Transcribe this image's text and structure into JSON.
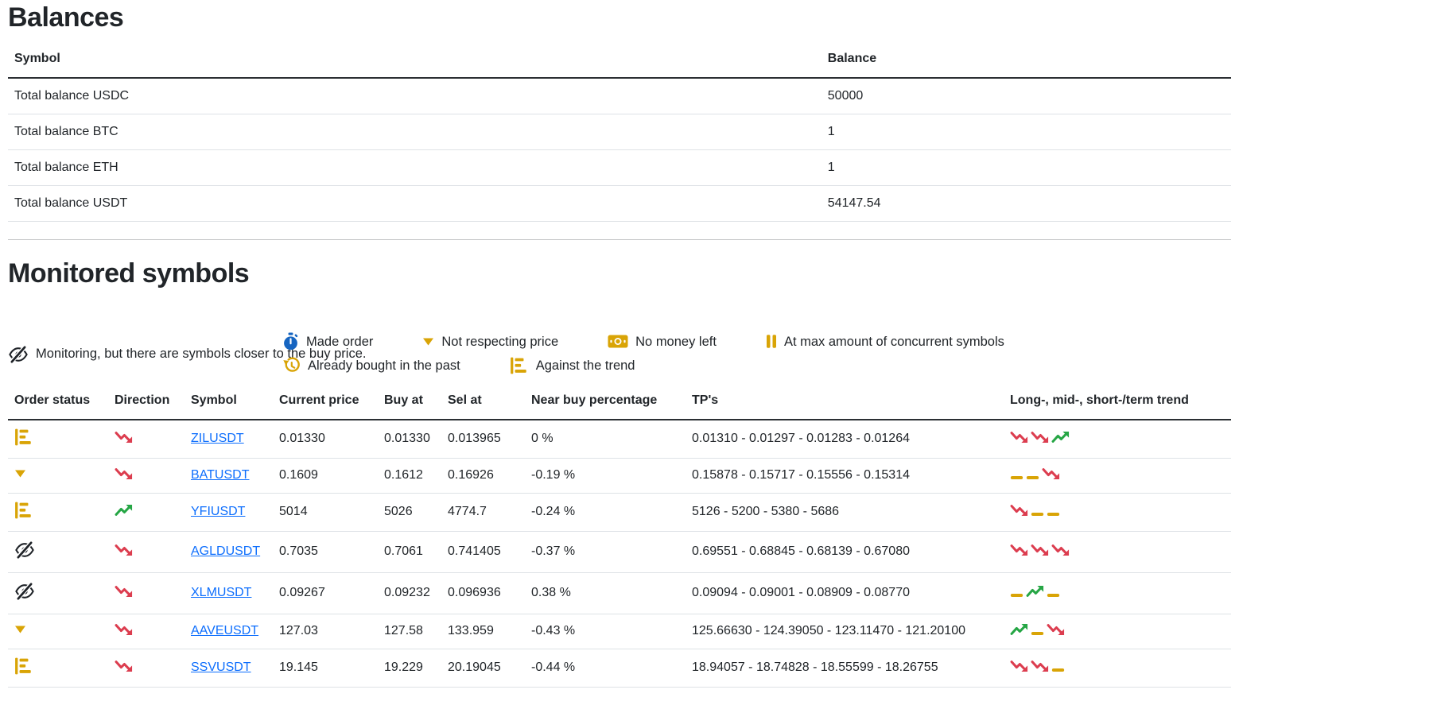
{
  "colors": {
    "gold": "#d9a406",
    "blue": "#1665c1",
    "red": "#dc3d4f",
    "green": "#26a645",
    "dark": "#1f2328",
    "link": "#0d6efd"
  },
  "balances": {
    "title": "Balances",
    "headers": [
      "Symbol",
      "Balance"
    ],
    "rows": [
      {
        "symbol": "Total balance USDC",
        "balance": "50000"
      },
      {
        "symbol": "Total balance BTC",
        "balance": "1"
      },
      {
        "symbol": "Total balance ETH",
        "balance": "1"
      },
      {
        "symbol": "Total balance USDT",
        "balance": "54147.54"
      }
    ]
  },
  "monitored": {
    "title": "Monitored symbols",
    "legend": [
      {
        "icon": "eye-slash",
        "label": "Monitoring, but there are symbols closer to the buy price."
      },
      {
        "icon": "stopwatch",
        "label": "Made order"
      },
      {
        "icon": "triangle-down",
        "label": "Not respecting price"
      },
      {
        "icon": "money-bill",
        "label": "No money left"
      },
      {
        "icon": "pause",
        "label": "At max amount of concurrent symbols"
      },
      {
        "icon": "history",
        "label": "Already bought in the past"
      },
      {
        "icon": "chart-levels",
        "label": "Against the trend"
      }
    ],
    "headers": [
      "Order status",
      "Direction",
      "Symbol",
      "Current price",
      "Buy at",
      "Sel at",
      "Near buy percentage",
      "TP's",
      "Long-, mid-, short-/term trend"
    ],
    "rows": [
      {
        "status": "chart-levels",
        "direction": "down",
        "symbol": "ZILUSDT",
        "current_price": "0.01330",
        "buy_at": "0.01330",
        "sell_at": "0.013965",
        "near_buy": "0 %",
        "tps": "0.01310 - 0.01297 - 0.01283 - 0.01264",
        "trend": [
          "down",
          "down",
          "up"
        ]
      },
      {
        "status": "triangle-down",
        "direction": "down",
        "symbol": "BATUSDT",
        "current_price": "0.1609",
        "buy_at": "0.1612",
        "sell_at": "0.16926",
        "near_buy": "-0.19 %",
        "tps": "0.15878 - 0.15717 - 0.15556 - 0.15314",
        "trend": [
          "flat",
          "flat",
          "down"
        ]
      },
      {
        "status": "chart-levels",
        "direction": "up",
        "symbol": "YFIUSDT",
        "current_price": "5014",
        "buy_at": "5026",
        "sell_at": "4774.7",
        "near_buy": "-0.24 %",
        "tps": "5126 - 5200 - 5380 - 5686",
        "trend": [
          "down",
          "flat",
          "flat"
        ]
      },
      {
        "status": "eye-slash",
        "direction": "down",
        "symbol": "AGLDUSDT",
        "current_price": "0.7035",
        "buy_at": "0.7061",
        "sell_at": "0.741405",
        "near_buy": "-0.37 %",
        "tps": "0.69551 - 0.68845 - 0.68139 - 0.67080",
        "trend": [
          "down",
          "down",
          "down"
        ]
      },
      {
        "status": "eye-slash",
        "direction": "down",
        "symbol": "XLMUSDT",
        "current_price": "0.09267",
        "buy_at": "0.09232",
        "sell_at": "0.096936",
        "near_buy": "0.38 %",
        "tps": "0.09094 - 0.09001 - 0.08909 - 0.08770",
        "trend": [
          "flat",
          "up",
          "flat"
        ]
      },
      {
        "status": "triangle-down",
        "direction": "down",
        "symbol": "AAVEUSDT",
        "current_price": "127.03",
        "buy_at": "127.58",
        "sell_at": "133.959",
        "near_buy": "-0.43 %",
        "tps": "125.66630 - 124.39050 - 123.11470 - 121.20100",
        "trend": [
          "up",
          "flat",
          "down"
        ]
      },
      {
        "status": "chart-levels",
        "direction": "down",
        "symbol": "SSVUSDT",
        "current_price": "19.145",
        "buy_at": "19.229",
        "sell_at": "20.19045",
        "near_buy": "-0.44 %",
        "tps": "18.94057 - 18.74828 - 18.55599 - 18.26755",
        "trend": [
          "down",
          "down",
          "flat"
        ]
      }
    ]
  }
}
